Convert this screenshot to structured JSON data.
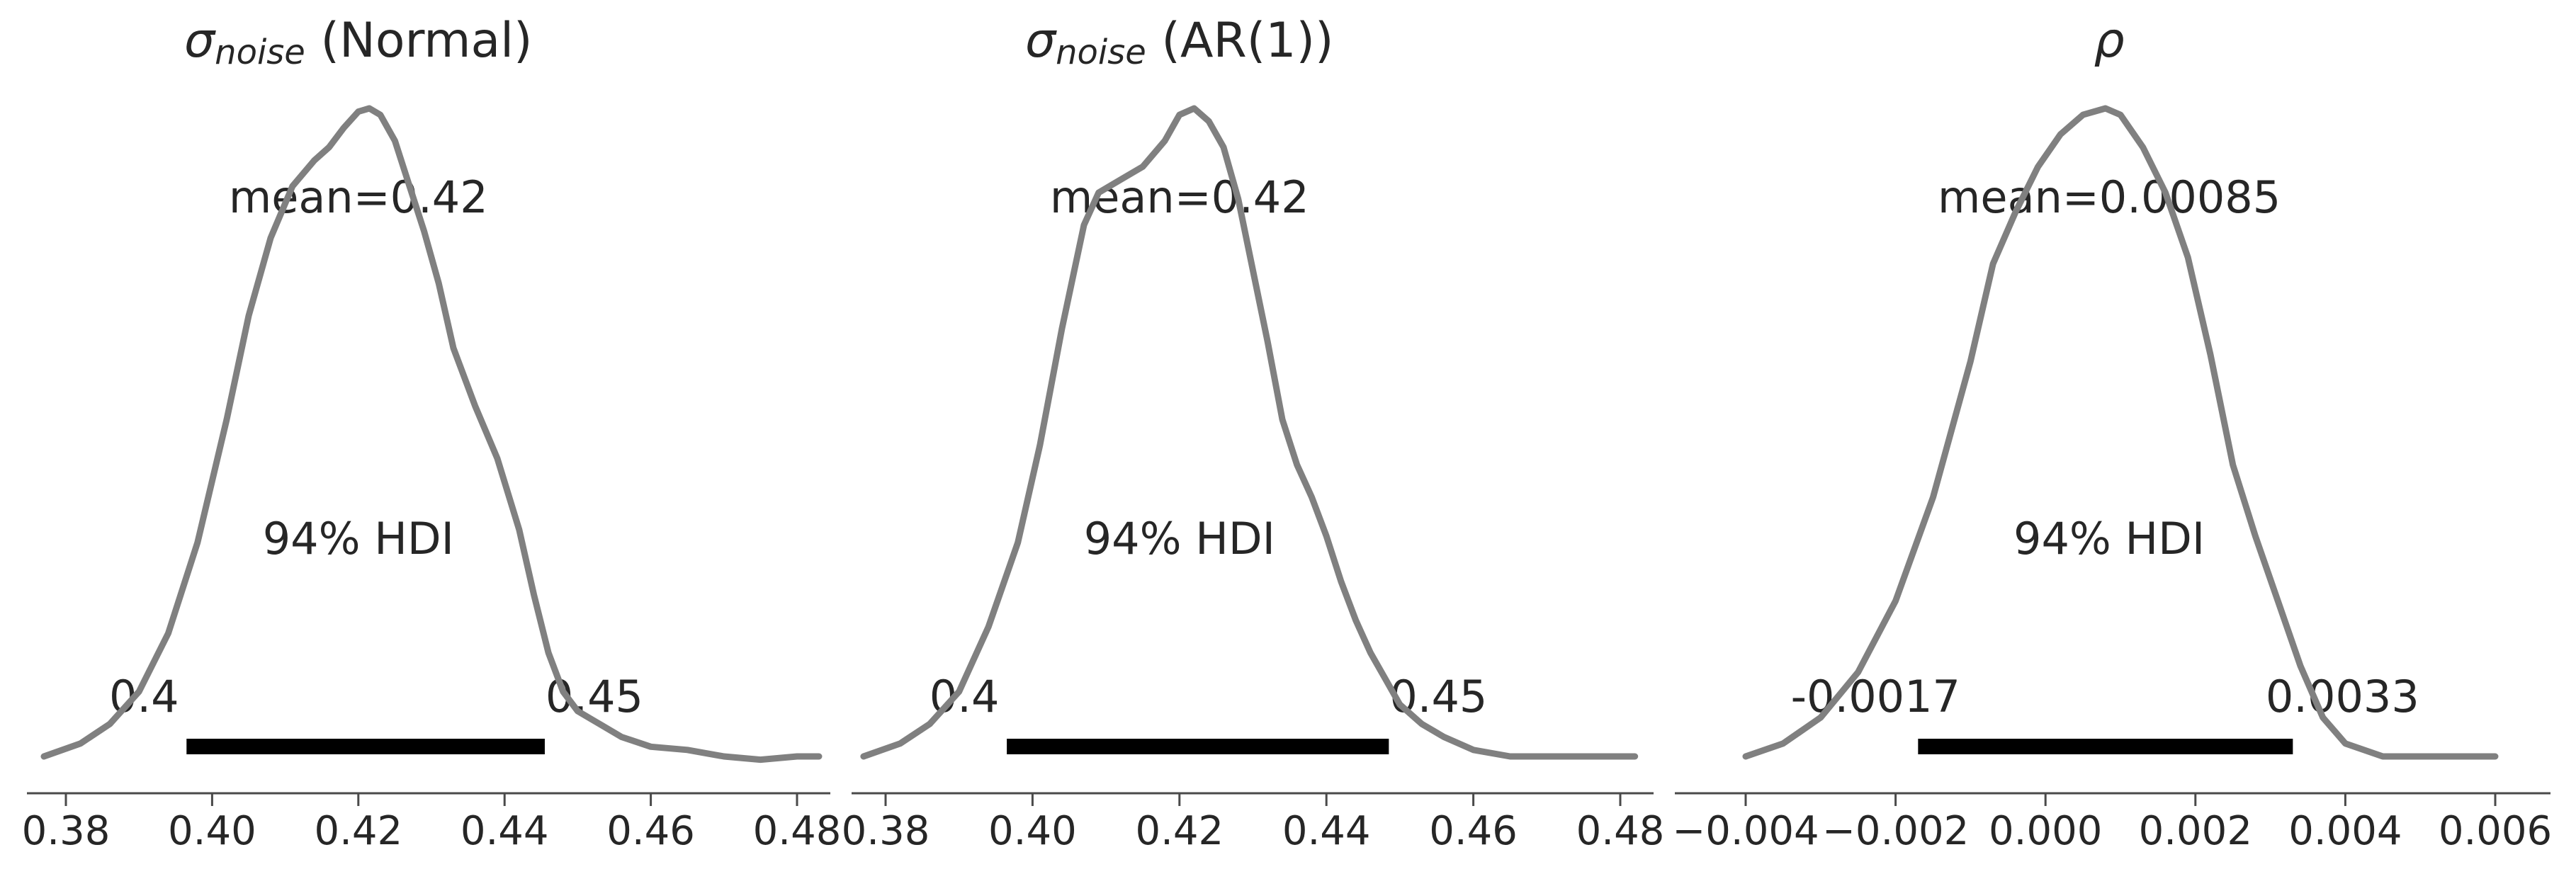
{
  "chart_data": [
    {
      "type": "area",
      "title_symbol": "σ",
      "title_subscript": "noise",
      "title_suffix": " (Normal)",
      "color": "#808080",
      "xlim": [
        0.375,
        0.485
      ],
      "x_ticks": [
        0.38,
        0.4,
        0.42,
        0.44,
        0.46,
        0.48
      ],
      "x_tick_labels": [
        "0.38",
        "0.40",
        "0.42",
        "0.44",
        "0.46",
        "0.48"
      ],
      "mean": 0.42,
      "mean_label": "mean=0.42",
      "hdi_label": "94% HDI",
      "hdi": [
        0.3965,
        0.4455
      ],
      "hdi_low_label": "0.4",
      "hdi_high_label": "0.45",
      "x": [
        0.377,
        0.382,
        0.386,
        0.39,
        0.394,
        0.398,
        0.402,
        0.405,
        0.408,
        0.411,
        0.414,
        0.416,
        0.418,
        0.42,
        0.4215,
        0.423,
        0.425,
        0.427,
        0.429,
        0.431,
        0.433,
        0.436,
        0.439,
        0.442,
        0.444,
        0.446,
        0.448,
        0.45,
        0.453,
        0.456,
        0.46,
        0.465,
        0.47,
        0.475,
        0.48,
        0.483
      ],
      "density": [
        0.0,
        0.02,
        0.05,
        0.1,
        0.19,
        0.33,
        0.52,
        0.68,
        0.8,
        0.88,
        0.92,
        0.94,
        0.97,
        0.995,
        1.0,
        0.99,
        0.95,
        0.88,
        0.81,
        0.73,
        0.63,
        0.54,
        0.46,
        0.35,
        0.25,
        0.16,
        0.1,
        0.07,
        0.05,
        0.03,
        0.015,
        0.01,
        0.0,
        -0.005,
        0.0,
        0.0
      ]
    },
    {
      "type": "area",
      "title_symbol": "σ",
      "title_subscript": "noise",
      "title_suffix": " (AR(1))",
      "color": "#808080",
      "xlim": [
        0.375,
        0.485
      ],
      "x_ticks": [
        0.38,
        0.4,
        0.42,
        0.44,
        0.46,
        0.48
      ],
      "x_tick_labels": [
        "0.38",
        "0.40",
        "0.42",
        "0.44",
        "0.46",
        "0.48"
      ],
      "mean": 0.42,
      "mean_label": "mean=0.42",
      "hdi_label": "94% HDI",
      "hdi": [
        0.3965,
        0.4485
      ],
      "hdi_low_label": "0.4",
      "hdi_high_label": "0.45",
      "x": [
        0.377,
        0.382,
        0.386,
        0.39,
        0.394,
        0.398,
        0.401,
        0.404,
        0.407,
        0.409,
        0.412,
        0.415,
        0.418,
        0.42,
        0.422,
        0.424,
        0.426,
        0.428,
        0.43,
        0.432,
        0.434,
        0.436,
        0.438,
        0.44,
        0.442,
        0.444,
        0.446,
        0.448,
        0.45,
        0.453,
        0.456,
        0.46,
        0.465,
        0.47,
        0.475,
        0.482
      ],
      "density": [
        0.0,
        0.02,
        0.05,
        0.1,
        0.2,
        0.33,
        0.48,
        0.66,
        0.82,
        0.87,
        0.89,
        0.91,
        0.95,
        0.99,
        1.0,
        0.98,
        0.94,
        0.86,
        0.75,
        0.64,
        0.52,
        0.45,
        0.4,
        0.34,
        0.27,
        0.21,
        0.16,
        0.12,
        0.08,
        0.05,
        0.03,
        0.01,
        0.0,
        0.0,
        0.0,
        0.0
      ]
    },
    {
      "type": "area",
      "title_symbol": "ρ",
      "title_subscript": "",
      "title_suffix": "",
      "color": "#808080",
      "xlim": [
        -0.00415,
        0.0064
      ],
      "x_ticks": [
        -0.004,
        -0.002,
        0.0,
        0.002,
        0.004,
        0.006
      ],
      "x_tick_labels": [
        "−0.004",
        "−0.002",
        "0.000",
        "0.002",
        "0.004",
        "0.006"
      ],
      "mean": 0.00085,
      "mean_label": "mean=0.00085",
      "hdi_label": "94% HDI",
      "hdi": [
        -0.0017,
        0.0033
      ],
      "hdi_low_label": "-0.0017",
      "hdi_high_label": "0.0033",
      "x": [
        -0.004,
        -0.0035,
        -0.003,
        -0.0025,
        -0.002,
        -0.0015,
        -0.001,
        -0.0007,
        -0.0004,
        -0.0001,
        0.0002,
        0.0005,
        0.0008,
        0.001,
        0.0013,
        0.0016,
        0.0019,
        0.0022,
        0.0025,
        0.0028,
        0.0031,
        0.0034,
        0.0037,
        0.004,
        0.0045,
        0.005,
        0.0055,
        0.006
      ],
      "density": [
        0.0,
        0.02,
        0.06,
        0.13,
        0.24,
        0.4,
        0.61,
        0.76,
        0.84,
        0.91,
        0.96,
        0.99,
        1.0,
        0.99,
        0.94,
        0.87,
        0.77,
        0.62,
        0.45,
        0.34,
        0.24,
        0.14,
        0.06,
        0.02,
        0.0,
        0.0,
        0.0,
        0.0
      ]
    }
  ]
}
